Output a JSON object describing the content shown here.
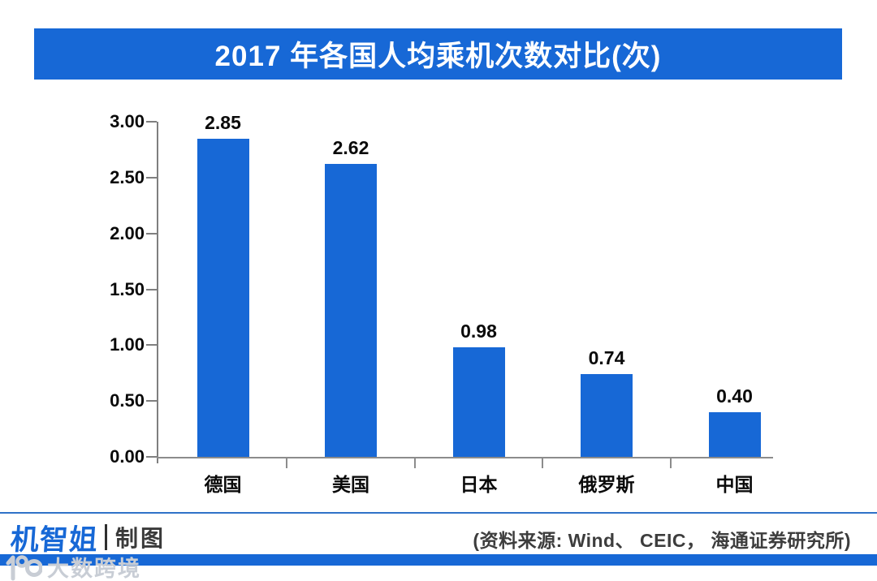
{
  "chart_data": {
    "type": "bar",
    "title": "2017 年各国人均乘机次数对比(次)",
    "categories": [
      "德国",
      "美国",
      "日本",
      "俄罗斯",
      "中国"
    ],
    "values": [
      2.85,
      2.62,
      0.98,
      0.74,
      0.4
    ],
    "data_labels": [
      "2.85",
      "2.62",
      "0.98",
      "0.74",
      "0.40"
    ],
    "y_ticks": [
      "3.00",
      "2.50",
      "2.00",
      "1.50",
      "1.00",
      "0.50",
      "0.00"
    ],
    "ylim": [
      0,
      3
    ],
    "xlabel": "",
    "ylabel": "",
    "grid": false,
    "legend": null,
    "bar_color": "#1768d6"
  },
  "colors": {
    "accent_blue": "#1768d6",
    "axis_gray": "#8c8c8c",
    "text_dark": "#3d3d3d",
    "watermark_gray": "#c8cdd5"
  },
  "footer": {
    "logo_text": "机智姐",
    "logo_suffix": "制图",
    "source_text": "(资料来源: Wind、 CEIC， 海通证券研究所)"
  },
  "watermark": {
    "text": "大数跨境",
    "logo_icon": "10100-rings-logo"
  }
}
